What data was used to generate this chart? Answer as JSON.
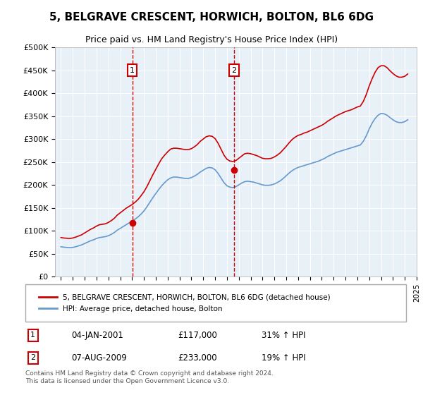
{
  "title": "5, BELGRAVE CRESCENT, HORWICH, BOLTON, BL6 6DG",
  "subtitle": "Price paid vs. HM Land Registry's House Price Index (HPI)",
  "xlabel": "",
  "ylabel": "",
  "ylim": [
    0,
    500000
  ],
  "yticks": [
    0,
    50000,
    100000,
    150000,
    200000,
    250000,
    300000,
    350000,
    400000,
    450000,
    500000
  ],
  "ytick_labels": [
    "£0",
    "£50K",
    "£100K",
    "£150K",
    "£200K",
    "£250K",
    "£300K",
    "£350K",
    "£400K",
    "£450K",
    "£500K"
  ],
  "background_color": "#e8f0f8",
  "plot_bg_color": "#e8f0f8",
  "red_line_color": "#cc0000",
  "blue_line_color": "#6699cc",
  "sale1_x": 2001.02,
  "sale1_y": 117000,
  "sale1_label": "1",
  "sale1_date": "04-JAN-2001",
  "sale1_price": "£117,000",
  "sale1_hpi": "31% ↑ HPI",
  "sale2_x": 2009.6,
  "sale2_y": 233000,
  "sale2_label": "2",
  "sale2_date": "07-AUG-2009",
  "sale2_price": "£233,000",
  "sale2_hpi": "19% ↑ HPI",
  "legend_label_red": "5, BELGRAVE CRESCENT, HORWICH, BOLTON, BL6 6DG (detached house)",
  "legend_label_blue": "HPI: Average price, detached house, Bolton",
  "footer": "Contains HM Land Registry data © Crown copyright and database right 2024.\nThis data is licensed under the Open Government Licence v3.0.",
  "hpi_years": [
    1995.0,
    1995.25,
    1995.5,
    1995.75,
    1996.0,
    1996.25,
    1996.5,
    1996.75,
    1997.0,
    1997.25,
    1997.5,
    1997.75,
    1998.0,
    1998.25,
    1998.5,
    1998.75,
    1999.0,
    1999.25,
    1999.5,
    1999.75,
    2000.0,
    2000.25,
    2000.5,
    2000.75,
    2001.0,
    2001.25,
    2001.5,
    2001.75,
    2002.0,
    2002.25,
    2002.5,
    2002.75,
    2003.0,
    2003.25,
    2003.5,
    2003.75,
    2004.0,
    2004.25,
    2004.5,
    2004.75,
    2005.0,
    2005.25,
    2005.5,
    2005.75,
    2006.0,
    2006.25,
    2006.5,
    2006.75,
    2007.0,
    2007.25,
    2007.5,
    2007.75,
    2008.0,
    2008.25,
    2008.5,
    2008.75,
    2009.0,
    2009.25,
    2009.5,
    2009.75,
    2010.0,
    2010.25,
    2010.5,
    2010.75,
    2011.0,
    2011.25,
    2011.5,
    2011.75,
    2012.0,
    2012.25,
    2012.5,
    2012.75,
    2013.0,
    2013.25,
    2013.5,
    2013.75,
    2014.0,
    2014.25,
    2014.5,
    2014.75,
    2015.0,
    2015.25,
    2015.5,
    2015.75,
    2016.0,
    2016.25,
    2016.5,
    2016.75,
    2017.0,
    2017.25,
    2017.5,
    2017.75,
    2018.0,
    2018.25,
    2018.5,
    2018.75,
    2019.0,
    2019.25,
    2019.5,
    2019.75,
    2020.0,
    2020.25,
    2020.5,
    2020.75,
    2021.0,
    2021.25,
    2021.5,
    2021.75,
    2022.0,
    2022.25,
    2022.5,
    2022.75,
    2023.0,
    2023.25,
    2023.5,
    2023.75,
    2024.0,
    2024.25
  ],
  "hpi_values": [
    65000,
    64000,
    63500,
    63000,
    63500,
    65000,
    67000,
    69000,
    72000,
    75000,
    78000,
    80000,
    83000,
    85000,
    86000,
    87000,
    89000,
    92000,
    96000,
    101000,
    105000,
    109000,
    113000,
    117000,
    121000,
    125000,
    130000,
    136000,
    143000,
    152000,
    162000,
    172000,
    181000,
    190000,
    198000,
    205000,
    211000,
    215000,
    217000,
    217000,
    216000,
    215000,
    214000,
    214000,
    216000,
    219000,
    223000,
    228000,
    232000,
    236000,
    238000,
    237000,
    233000,
    225000,
    215000,
    205000,
    198000,
    195000,
    194000,
    196000,
    200000,
    204000,
    207000,
    208000,
    207000,
    206000,
    204000,
    202000,
    200000,
    199000,
    199000,
    200000,
    202000,
    205000,
    209000,
    214000,
    220000,
    226000,
    231000,
    235000,
    238000,
    240000,
    242000,
    244000,
    246000,
    248000,
    250000,
    252000,
    255000,
    258000,
    262000,
    265000,
    268000,
    271000,
    273000,
    275000,
    277000,
    279000,
    281000,
    283000,
    285000,
    287000,
    295000,
    307000,
    322000,
    335000,
    345000,
    352000,
    356000,
    355000,
    352000,
    347000,
    342000,
    338000,
    336000,
    336000,
    338000,
    342000
  ],
  "red_years": [
    1995.0,
    1995.25,
    1995.5,
    1995.75,
    1996.0,
    1996.25,
    1996.5,
    1996.75,
    1997.0,
    1997.25,
    1997.5,
    1997.75,
    1998.0,
    1998.25,
    1998.5,
    1998.75,
    1999.0,
    1999.25,
    1999.5,
    1999.75,
    2000.0,
    2000.25,
    2000.5,
    2000.75,
    2001.0,
    2001.25,
    2001.5,
    2001.75,
    2002.0,
    2002.25,
    2002.5,
    2002.75,
    2003.0,
    2003.25,
    2003.5,
    2003.75,
    2004.0,
    2004.25,
    2004.5,
    2004.75,
    2005.0,
    2005.25,
    2005.5,
    2005.75,
    2006.0,
    2006.25,
    2006.5,
    2006.75,
    2007.0,
    2007.25,
    2007.5,
    2007.75,
    2008.0,
    2008.25,
    2008.5,
    2008.75,
    2009.0,
    2009.25,
    2009.5,
    2009.75,
    2010.0,
    2010.25,
    2010.5,
    2010.75,
    2011.0,
    2011.25,
    2011.5,
    2011.75,
    2012.0,
    2012.25,
    2012.5,
    2012.75,
    2013.0,
    2013.25,
    2013.5,
    2013.75,
    2014.0,
    2014.25,
    2014.5,
    2014.75,
    2015.0,
    2015.25,
    2015.5,
    2015.75,
    2016.0,
    2016.25,
    2016.5,
    2016.75,
    2017.0,
    2017.25,
    2017.5,
    2017.75,
    2018.0,
    2018.25,
    2018.5,
    2018.75,
    2019.0,
    2019.25,
    2019.5,
    2019.75,
    2020.0,
    2020.25,
    2020.5,
    2020.75,
    2021.0,
    2021.25,
    2021.5,
    2021.75,
    2022.0,
    2022.25,
    2022.5,
    2022.75,
    2023.0,
    2023.25,
    2023.5,
    2023.75,
    2024.0,
    2024.25
  ],
  "red_values": [
    85000,
    84000,
    83500,
    83000,
    84000,
    86000,
    88500,
    91000,
    95000,
    99000,
    103000,
    106000,
    110000,
    113000,
    114000,
    115000,
    118000,
    122000,
    127000,
    134000,
    139000,
    144000,
    149000,
    153000,
    157000,
    162000,
    168000,
    176000,
    185000,
    196000,
    209000,
    222000,
    234000,
    246000,
    257000,
    265000,
    272000,
    278000,
    280000,
    280000,
    279000,
    278000,
    277000,
    277000,
    279000,
    283000,
    288000,
    295000,
    300000,
    305000,
    307000,
    306000,
    301000,
    291000,
    278000,
    265000,
    256000,
    252000,
    251000,
    253000,
    258000,
    263000,
    268000,
    269000,
    268000,
    266000,
    264000,
    261000,
    258000,
    257000,
    257000,
    258000,
    261000,
    265000,
    270000,
    277000,
    284000,
    292000,
    299000,
    304000,
    308000,
    310000,
    313000,
    315000,
    318000,
    321000,
    324000,
    327000,
    330000,
    334000,
    339000,
    343000,
    347000,
    351000,
    354000,
    357000,
    360000,
    362000,
    364000,
    367000,
    370000,
    372000,
    382000,
    397000,
    416000,
    432000,
    446000,
    456000,
    460000,
    460000,
    456000,
    449000,
    443000,
    438000,
    435000,
    435000,
    437000,
    442000
  ],
  "xlim_left": 1994.5,
  "xlim_right": 2025.0,
  "xtick_years": [
    1995,
    1996,
    1997,
    1998,
    1999,
    2000,
    2001,
    2002,
    2003,
    2004,
    2005,
    2006,
    2007,
    2008,
    2009,
    2010,
    2011,
    2012,
    2013,
    2014,
    2015,
    2016,
    2017,
    2018,
    2019,
    2020,
    2021,
    2022,
    2023,
    2024,
    2025
  ]
}
